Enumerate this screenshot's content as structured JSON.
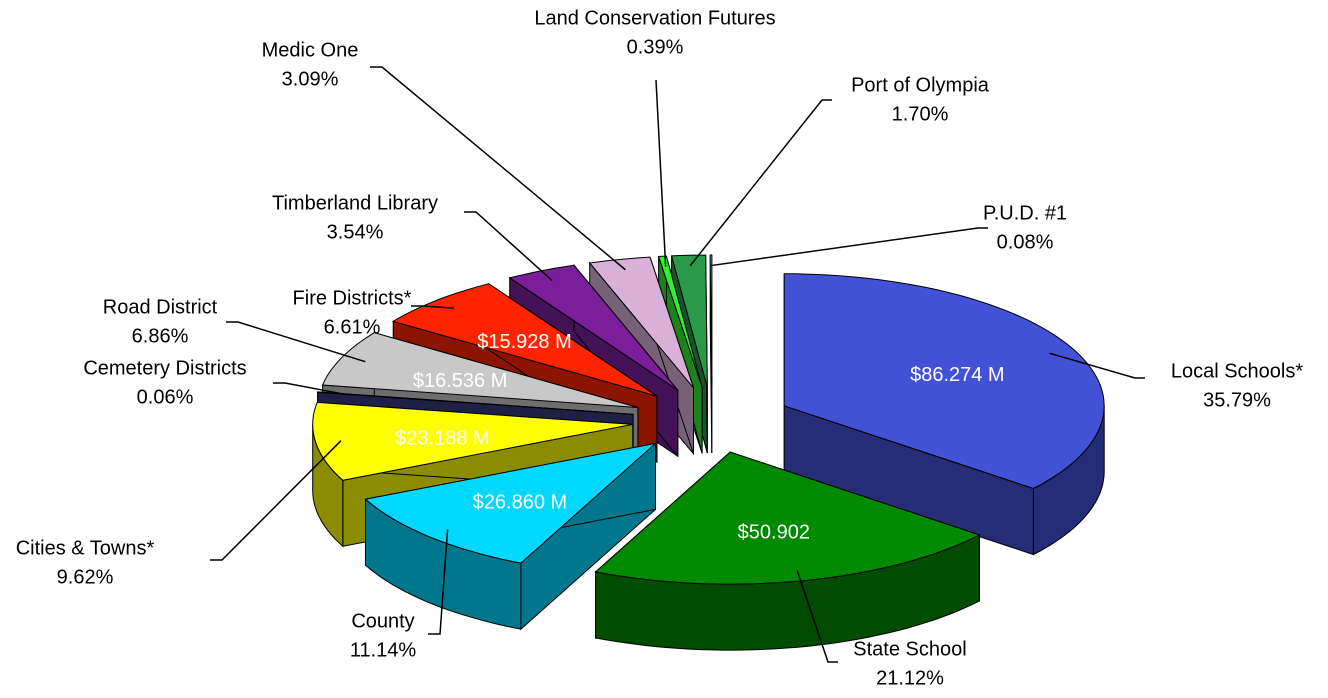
{
  "chart_data": {
    "type": "pie",
    "categories": [
      "Local Schools*",
      "State School",
      "County",
      "Cities & Towns*",
      "Cemetery Districts",
      "Road District",
      "Fire Districts*",
      "Timberland Library",
      "Medic One",
      "Land Conservation Futures",
      "Port of Olympia",
      "P.U.D. #1"
    ],
    "values": [
      35.79,
      21.12,
      11.14,
      9.62,
      0.06,
      6.86,
      6.61,
      3.54,
      3.09,
      0.39,
      1.7,
      0.08
    ],
    "value_labels": [
      "35.79%",
      "21.12%",
      "11.14%",
      "9.62%",
      "0.06%",
      "6.86%",
      "6.61%",
      "3.54%",
      "3.09%",
      "0.39%",
      "1.70%",
      "0.08%"
    ],
    "amount_labels": [
      "$86.274 M",
      "$50.902",
      "$26.860 M",
      "$23.188 M",
      null,
      "$16.536 M",
      "$15.928 M",
      null,
      null,
      null,
      null,
      null
    ],
    "colors": [
      "#4252d6",
      "#008a00",
      "#00d8ff",
      "#ffff00",
      "#3a3a80",
      "#c8c8c8",
      "#ff2400",
      "#7a1e9a",
      "#d8b0d8",
      "#33ee33",
      "#2a9a4a",
      "#b4d0f0"
    ]
  }
}
